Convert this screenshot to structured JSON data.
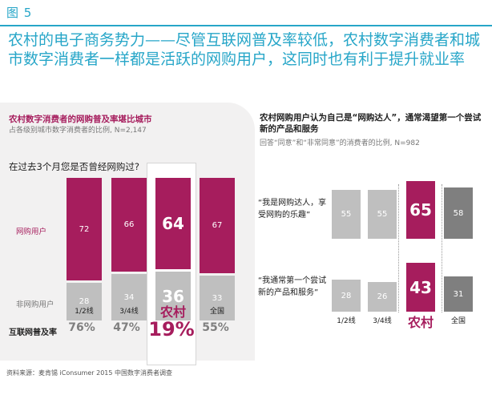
{
  "figure_label": "图 5",
  "title": "农村的电子商务势力——尽管互联网普及率较低，农村数字消费者和城市数字消费者一样都是活跃的网购用户，这同时也有利于提升就业率",
  "colors": {
    "accent": "#27a6c8",
    "magenta": "#a61d5d",
    "gray_bar": "#bfbfbf",
    "dark_bar": "#7f7f7f"
  },
  "chart_data": [
    {
      "type": "bar",
      "stacked": true,
      "title": "农村数字消费者的网购普及率堪比城市",
      "subtitle": "占各级别城市数字消费者的比例, N=2,147",
      "question": "在过去3个月您是否曾经网购过?",
      "categories": [
        "1/2线",
        "3/4线",
        "农村",
        "全国"
      ],
      "series": [
        {
          "name": "网购用户",
          "values": [
            72,
            66,
            64,
            67
          ]
        },
        {
          "name": "非网购用户",
          "values": [
            28,
            34,
            36,
            33
          ]
        }
      ],
      "ylim": [
        0,
        100
      ],
      "extra_row": {
        "label": "互联网普及率",
        "values": [
          "76%",
          "47%",
          "19%",
          "55%"
        ]
      },
      "highlight": "农村"
    },
    {
      "type": "bar",
      "title": "农村网购用户认为自己是“网购达人”，通常渴望第一个尝试新的产品和服务",
      "subtitle": "回答“同意”和“非常同意”的消费者的比例, N=982",
      "categories": [
        "1/2线",
        "3/4线",
        "农村",
        "全国"
      ],
      "series": [
        {
          "name": "“我是网购达人，享受网购的乐趣”",
          "values": [
            55,
            55,
            65,
            58
          ]
        },
        {
          "name": "“我通常第一个尝试新的产品和服务”",
          "values": [
            28,
            26,
            43,
            31
          ]
        }
      ],
      "ylim": [
        0,
        70
      ],
      "highlight": "农村"
    }
  ],
  "source": "资料来源：麦肯锡 iConsumer 2015 中国数字消费者调查"
}
